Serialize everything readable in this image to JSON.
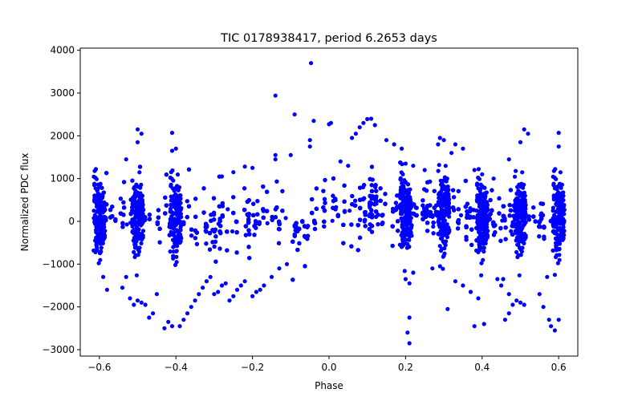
{
  "chart_data": {
    "type": "scatter",
    "title": "TIC 0178938417, period 6.2653 days",
    "xlabel": "Phase",
    "ylabel": "Normalized PDC flux",
    "xlim": [
      -0.65,
      0.65
    ],
    "ylim": [
      -3150,
      4050
    ],
    "xticks": [
      -0.6,
      -0.4,
      -0.2,
      0.0,
      0.2,
      0.4,
      0.6
    ],
    "xtick_labels": [
      "−0.6",
      "−0.4",
      "−0.2",
      "0.0",
      "0.2",
      "0.4",
      "0.6"
    ],
    "yticks": [
      -3000,
      -2000,
      -1000,
      0,
      1000,
      2000,
      3000,
      4000
    ],
    "ytick_labels": [
      "−3000",
      "−2000",
      "−1000",
      "0",
      "1000",
      "2000",
      "3000",
      "4000"
    ],
    "grid": false,
    "marker_color": "#0000ff",
    "series": [
      {
        "name": "",
        "x_range": [
          -0.6,
          0.6
        ],
        "points": [
          [
            -0.047,
            3700
          ],
          [
            -0.14,
            2940
          ],
          [
            -0.09,
            2500
          ],
          [
            -0.04,
            2350
          ],
          [
            0.005,
            2300
          ],
          [
            0.0,
            2270
          ],
          [
            0.1,
            2390
          ],
          [
            0.11,
            2400
          ],
          [
            0.09,
            2300
          ],
          [
            0.08,
            2200
          ],
          [
            0.12,
            2250
          ],
          [
            0.07,
            2050
          ],
          [
            0.06,
            1950
          ],
          [
            0.15,
            1900
          ],
          [
            0.17,
            1800
          ],
          [
            0.19,
            1700
          ],
          [
            0.29,
            1950
          ],
          [
            0.3,
            1900
          ],
          [
            0.33,
            1800
          ],
          [
            0.35,
            1700
          ],
          [
            0.285,
            1800
          ],
          [
            0.32,
            1600
          ],
          [
            -0.5,
            2150
          ],
          [
            -0.49,
            2050
          ],
          [
            -0.5,
            1850
          ],
          [
            -0.41,
            2070
          ],
          [
            -0.4,
            1700
          ],
          [
            -0.41,
            1650
          ],
          [
            0.51,
            2150
          ],
          [
            0.52,
            2050
          ],
          [
            0.5,
            1850
          ],
          [
            0.6,
            2070
          ],
          [
            0.6,
            1750
          ],
          [
            -0.53,
            1450
          ],
          [
            0.47,
            1450
          ],
          [
            -0.14,
            1550
          ],
          [
            -0.14,
            1450
          ],
          [
            -0.05,
            1900
          ],
          [
            -0.05,
            1750
          ],
          [
            -0.1,
            1550
          ],
          [
            -0.2,
            1250
          ],
          [
            -0.22,
            1280
          ],
          [
            -0.25,
            1150
          ],
          [
            -0.28,
            1050
          ],
          [
            0.03,
            1400
          ],
          [
            0.05,
            1300
          ],
          [
            0.2,
            1350
          ],
          [
            0.22,
            1300
          ],
          [
            0.25,
            1200
          ],
          [
            0.38,
            1200
          ],
          [
            0.4,
            1100
          ],
          [
            0.43,
            1000
          ],
          [
            0.21,
            -2250
          ],
          [
            0.205,
            -2600
          ],
          [
            0.21,
            -2850
          ],
          [
            0.31,
            -2050
          ],
          [
            0.405,
            -2400
          ],
          [
            0.38,
            -2450
          ],
          [
            0.39,
            -1800
          ],
          [
            0.37,
            -1650
          ],
          [
            0.35,
            -1500
          ],
          [
            0.33,
            -1400
          ],
          [
            0.44,
            -1350
          ],
          [
            0.45,
            -1500
          ],
          [
            -0.42,
            -2350
          ],
          [
            -0.41,
            -2450
          ],
          [
            -0.43,
            -2500
          ],
          [
            -0.39,
            -2450
          ],
          [
            -0.38,
            -2300
          ],
          [
            -0.37,
            -2150
          ],
          [
            -0.36,
            -2000
          ],
          [
            -0.35,
            -1850
          ],
          [
            -0.34,
            -1700
          ],
          [
            -0.33,
            -1550
          ],
          [
            -0.32,
            -1400
          ],
          [
            -0.31,
            -1300
          ],
          [
            -0.3,
            -1700
          ],
          [
            -0.29,
            -1650
          ],
          [
            -0.28,
            -1500
          ],
          [
            -0.27,
            -1450
          ],
          [
            -0.26,
            -1850
          ],
          [
            -0.25,
            -1750
          ],
          [
            -0.24,
            -1600
          ],
          [
            -0.23,
            -1500
          ],
          [
            -0.22,
            -1400
          ],
          [
            -0.2,
            -1750
          ],
          [
            -0.19,
            -1650
          ],
          [
            -0.18,
            -1600
          ],
          [
            -0.17,
            -1500
          ],
          [
            -0.15,
            -1300
          ],
          [
            -0.13,
            -1100
          ],
          [
            -0.11,
            -1000
          ],
          [
            -0.45,
            -1700
          ],
          [
            -0.46,
            -2150
          ],
          [
            -0.47,
            -2250
          ],
          [
            -0.48,
            -1950
          ],
          [
            -0.49,
            -1900
          ],
          [
            -0.5,
            -1850
          ],
          [
            -0.51,
            -1950
          ],
          [
            -0.52,
            -1800
          ],
          [
            -0.53,
            -1300
          ],
          [
            -0.54,
            -1550
          ],
          [
            -0.58,
            -1600
          ],
          [
            -0.59,
            -1300
          ],
          [
            0.48,
            -1950
          ],
          [
            0.49,
            -1850
          ],
          [
            0.5,
            -1900
          ],
          [
            0.51,
            -1950
          ],
          [
            0.47,
            -1700
          ],
          [
            0.455,
            -1350
          ],
          [
            0.46,
            -2300
          ],
          [
            0.47,
            -2150
          ],
          [
            0.58,
            -2450
          ],
          [
            0.59,
            -2550
          ],
          [
            0.6,
            -2300
          ],
          [
            0.575,
            -2300
          ],
          [
            0.56,
            -2000
          ],
          [
            0.55,
            -1700
          ],
          [
            0.57,
            -1300
          ],
          [
            0.59,
            -1250
          ],
          [
            0.2,
            -1350
          ],
          [
            0.21,
            -1450
          ],
          [
            0.22,
            -1200
          ],
          [
            0.27,
            -1100
          ],
          [
            0.29,
            -1050
          ],
          [
            0.3,
            -800
          ]
        ]
      }
    ]
  }
}
